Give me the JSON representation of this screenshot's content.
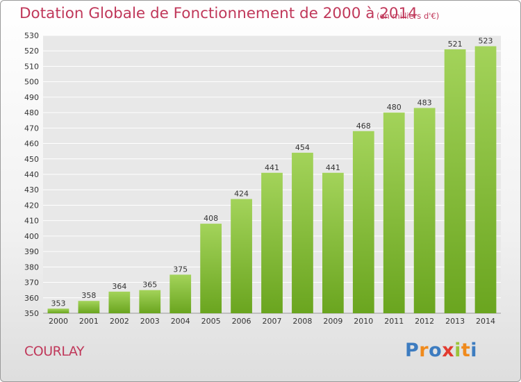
{
  "title": "Dotation Globale de Fonctionnement de 2000 à 2014",
  "unit_note": "(en milliers d'€)",
  "commune": "COURLAY",
  "brand": {
    "text": "Proxiti",
    "letter_colors": [
      "#3d7cc0",
      "#f08a1c",
      "#3d7cc0",
      "#e23b30",
      "#9bc43a",
      "#f08a1c",
      "#3d7cc0"
    ]
  },
  "chart_data": {
    "type": "bar",
    "title": "Dotation Globale de Fonctionnement de 2000 à 2014",
    "subtitle": "(en milliers d'€)",
    "categories": [
      "2000",
      "2001",
      "2002",
      "2003",
      "2004",
      "2005",
      "2006",
      "2007",
      "2008",
      "2009",
      "2010",
      "2011",
      "2012",
      "2013",
      "2014"
    ],
    "values": [
      353,
      358,
      364,
      365,
      375,
      408,
      424,
      441,
      454,
      441,
      468,
      480,
      483,
      521,
      523
    ],
    "ylim": [
      350,
      530
    ],
    "ytick_step": 10,
    "grid": true,
    "bar_color_top": "#a3d35a",
    "bar_color_bottom": "#6aa51f"
  }
}
